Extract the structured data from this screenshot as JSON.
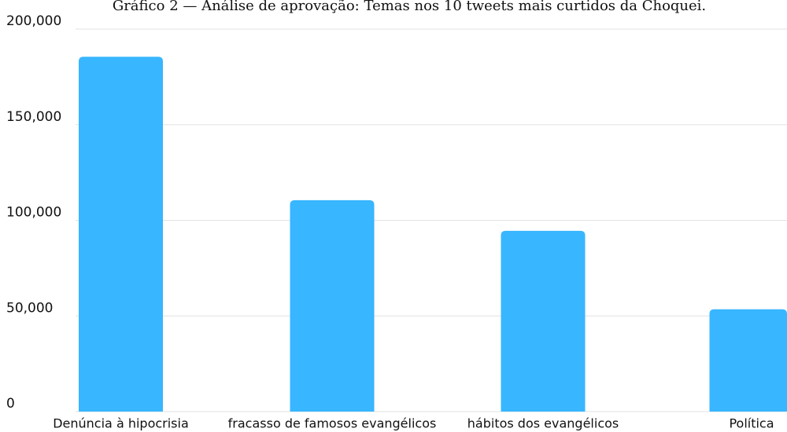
{
  "chart_data": {
    "type": "bar",
    "title": "Gráfico 2 — Análise de aprovação: Temas nos 10 tweets mais curtidos da Choquei.",
    "xlabel": "",
    "ylabel": "",
    "categories": [
      "Denúncia à hipocrisia",
      "fracasso de famosos evangélicos",
      "hábitos dos evangélicos",
      "Política"
    ],
    "values": [
      185500,
      110500,
      94500,
      53500
    ],
    "ylim": [
      0,
      200000
    ],
    "yticks": [
      0,
      50000,
      100000,
      150000,
      200000
    ],
    "ytick_labels": [
      "0",
      "50,000",
      "100,000",
      "150,000",
      "200,000"
    ],
    "grid": true,
    "legend": "none",
    "colors": {
      "bar": "#38B6FF",
      "grid": "#E2E2E2",
      "text": "#111111"
    }
  }
}
